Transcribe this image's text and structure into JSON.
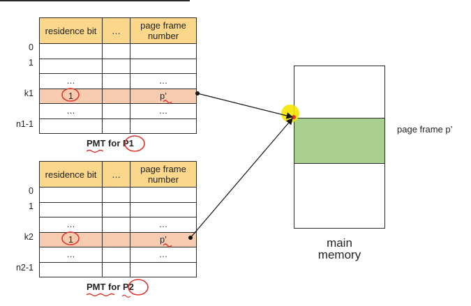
{
  "pmt1": {
    "headers": {
      "residence": "residence bit",
      "dots": "…",
      "frame": "page frame number"
    },
    "row_labels": [
      "0",
      "1",
      "",
      "k1",
      "",
      "n1-1"
    ],
    "rows": [
      {
        "res": "",
        "mid": "",
        "frame": ""
      },
      {
        "res": "",
        "mid": "",
        "frame": ""
      },
      {
        "res": "…",
        "mid": "",
        "frame": "…"
      },
      {
        "res": "1",
        "mid": "",
        "frame": "p’"
      },
      {
        "res": "…",
        "mid": "",
        "frame": "…"
      },
      {
        "res": "",
        "mid": "",
        "frame": ""
      }
    ],
    "caption_prefix": "PMT for ",
    "caption_process": "P1"
  },
  "pmt2": {
    "headers": {
      "residence": "residence bit",
      "dots": "…",
      "frame": "page frame number"
    },
    "row_labels": [
      "0",
      "1",
      "",
      "k2",
      "",
      "n2-1"
    ],
    "rows": [
      {
        "res": "",
        "mid": "",
        "frame": ""
      },
      {
        "res": "",
        "mid": "",
        "frame": ""
      },
      {
        "res": "…",
        "mid": "",
        "frame": "…"
      },
      {
        "res": "1",
        "mid": "",
        "frame": "p’"
      },
      {
        "res": "…",
        "mid": "",
        "frame": "…"
      },
      {
        "res": "",
        "mid": "",
        "frame": ""
      }
    ],
    "caption_prefix": "PMT for ",
    "caption_process": "P2"
  },
  "memory": {
    "label_line1": "main",
    "label_line2": "memory",
    "frame_label": "page frame p’"
  },
  "colors": {
    "header_fill": "#fbd78b",
    "highlight_row": "#f7cbaf",
    "page_frame_fill": "#a9d08e",
    "annotation_red": "#e0332c",
    "cursor_yellow": "#f5e400"
  }
}
